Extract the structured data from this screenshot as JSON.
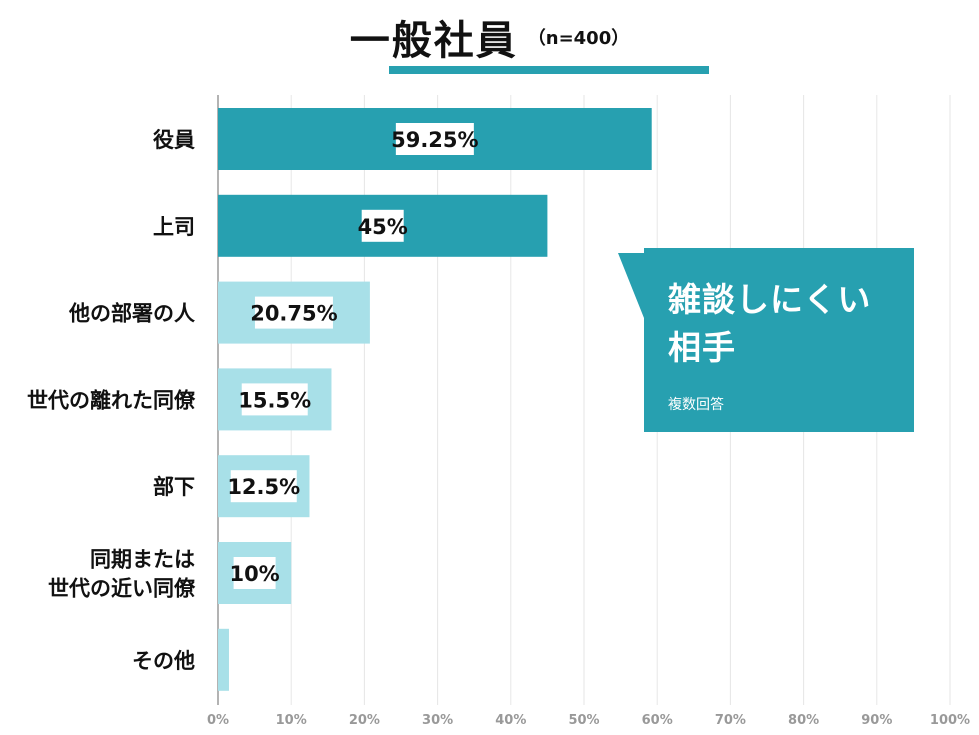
{
  "title": {
    "main": "一般社員",
    "sub": "（n=400）"
  },
  "callout": {
    "heading_line1": "雑談しにくい",
    "heading_line2": "相手",
    "note": "複数回答"
  },
  "colors": {
    "accent": "#27a0b0",
    "dark_bar": "#27a0b0",
    "light_bar": "#a8e0e8",
    "grid": "#e6e6e6",
    "axis": "#9a9a9a",
    "label_bg": "#ffffff"
  },
  "chart_data": {
    "type": "bar",
    "orientation": "horizontal",
    "categories": [
      [
        "役員"
      ],
      [
        "上司"
      ],
      [
        "他の部署の人"
      ],
      [
        "世代の離れた同僚"
      ],
      [
        "部下"
      ],
      [
        "同期または",
        "世代の近い同僚"
      ],
      [
        "その他"
      ]
    ],
    "values": [
      59.25,
      45,
      20.75,
      15.5,
      12.5,
      10,
      1.5
    ],
    "value_labels": [
      "59.25%",
      "45%",
      "20.75%",
      "15.5%",
      "12.5%",
      "10%",
      ""
    ],
    "highlight": [
      true,
      true,
      false,
      false,
      false,
      false,
      false
    ],
    "xlim": [
      0,
      100
    ],
    "xticks": [
      0,
      10,
      20,
      30,
      40,
      50,
      60,
      70,
      80,
      90,
      100
    ],
    "xtick_labels": [
      "0%",
      "10%",
      "20%",
      "30%",
      "40%",
      "50%",
      "60%",
      "70%",
      "80%",
      "90%",
      "100%"
    ],
    "grid": true,
    "xlabel": "",
    "ylabel": ""
  }
}
